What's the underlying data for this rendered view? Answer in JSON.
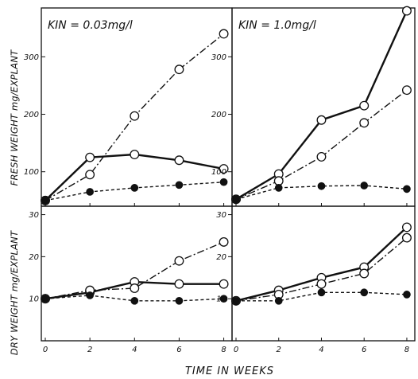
{
  "figure": {
    "y_label_top": "FRESH WEIGHT mg/EXPLANT",
    "y_label_bottom": "DRY WEIGHT mg/EXPLANT",
    "x_label": "TIME IN WEEKS"
  },
  "chart_data": [
    {
      "type": "line",
      "title": "KIN = 0.03mg/l",
      "ylabel": "FRESH WEIGHT mg/EXPLANT",
      "xlabel": "",
      "x": [
        0,
        2,
        4,
        6,
        8
      ],
      "xlim": [
        0,
        8.3
      ],
      "ylim": [
        40,
        385
      ],
      "yticks": [
        "100",
        "200",
        "300"
      ],
      "series": [
        {
          "style": "solid",
          "marker": "open-circle",
          "values": [
            50,
            125,
            130,
            120,
            105
          ]
        },
        {
          "style": "dashdot",
          "marker": "open-circle",
          "values": [
            50,
            95,
            197,
            278,
            340
          ]
        },
        {
          "style": "dashed",
          "marker": "filled-circle",
          "values": [
            50,
            65,
            72,
            77,
            82
          ]
        }
      ]
    },
    {
      "type": "line",
      "title": "KIN = 1.0mg/l",
      "ylabel": "",
      "xlabel": "",
      "x": [
        0,
        2,
        4,
        6,
        8
      ],
      "xlim": [
        0,
        8.3
      ],
      "ylim": [
        40,
        385
      ],
      "yticks": [
        "100",
        "200",
        "300"
      ],
      "series": [
        {
          "style": "solid",
          "marker": "open-circle",
          "values": [
            52,
            96,
            190,
            215,
            380
          ]
        },
        {
          "style": "dashdot",
          "marker": "open-circle",
          "values": [
            52,
            84,
            126,
            185,
            242
          ]
        },
        {
          "style": "dashed",
          "marker": "filled-circle",
          "values": [
            52,
            72,
            75,
            76,
            70
          ]
        }
      ]
    },
    {
      "type": "line",
      "title": "",
      "ylabel": "DRY WEIGHT mg/EXPLANT",
      "xlabel": "TIME IN WEEKS",
      "x": [
        0,
        2,
        4,
        6,
        8
      ],
      "xticks": [
        "0",
        "2",
        "4",
        "6",
        "8"
      ],
      "xlim": [
        0,
        8.3
      ],
      "ylim": [
        0,
        32
      ],
      "yticks": [
        "10",
        "20",
        "30"
      ],
      "series": [
        {
          "style": "solid",
          "marker": "open-circle",
          "values": [
            10,
            11.5,
            14,
            13.5,
            13.5
          ]
        },
        {
          "style": "dashdot",
          "marker": "open-circle",
          "values": [
            10,
            12,
            12.5,
            19,
            23.5
          ]
        },
        {
          "style": "dashed",
          "marker": "filled-circle",
          "values": [
            10,
            10.8,
            9.5,
            9.5,
            10
          ]
        }
      ]
    },
    {
      "type": "line",
      "title": "",
      "ylabel": "",
      "xlabel": "TIME IN WEEKS",
      "x": [
        0,
        2,
        4,
        6,
        8
      ],
      "xticks": [
        "0",
        "2",
        "4",
        "6",
        "8"
      ],
      "xlim": [
        0,
        8.3
      ],
      "ylim": [
        0,
        32
      ],
      "yticks": [
        "10",
        "20",
        "30"
      ],
      "series": [
        {
          "style": "solid",
          "marker": "open-circle",
          "values": [
            9.5,
            12,
            15,
            17.5,
            27
          ]
        },
        {
          "style": "dashdot",
          "marker": "open-circle",
          "values": [
            9.5,
            11,
            13.5,
            16,
            24.5
          ]
        },
        {
          "style": "dashed",
          "marker": "filled-circle",
          "values": [
            9.5,
            9.5,
            11.5,
            11.5,
            11
          ]
        }
      ]
    }
  ]
}
